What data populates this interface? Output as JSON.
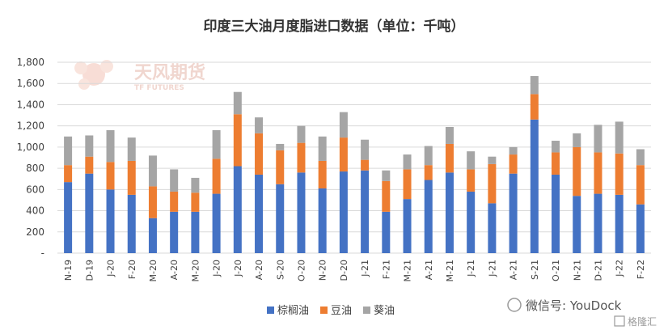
{
  "chart_data": {
    "type": "bar",
    "stacked": true,
    "title": "印度三大油月度脂进口数据（单位：千吨）",
    "ylim": [
      0,
      1800
    ],
    "yticks": [
      "-",
      "200",
      "400",
      "600",
      "800",
      "1,000",
      "1,200",
      "1,400",
      "1,600",
      "1,800"
    ],
    "grid": true,
    "legend_position": "bottom",
    "categories": [
      "N-19",
      "D-19",
      "J-20",
      "F-20",
      "M-20",
      "A-20",
      "M-20",
      "J-20",
      "J-20",
      "A-20",
      "S-20",
      "O-20",
      "N-20",
      "D-20",
      "J-21",
      "F-21",
      "M-21",
      "A-21",
      "M-21",
      "J-21",
      "J-21",
      "A-21",
      "S-21",
      "O-21",
      "N-21",
      "D-21",
      "J-22",
      "F-22"
    ],
    "series": [
      {
        "name": "棕榈油",
        "color": "#4472C4",
        "values": [
          670,
          750,
          600,
          550,
          330,
          390,
          390,
          560,
          820,
          740,
          650,
          760,
          610,
          770,
          780,
          390,
          510,
          690,
          760,
          580,
          470,
          750,
          1260,
          740,
          540,
          560,
          550,
          460
        ]
      },
      {
        "name": "豆油",
        "color": "#ED7D31",
        "values": [
          160,
          160,
          260,
          320,
          300,
          190,
          180,
          330,
          490,
          390,
          320,
          280,
          260,
          320,
          100,
          290,
          280,
          140,
          270,
          210,
          370,
          180,
          240,
          210,
          460,
          390,
          390,
          370
        ]
      },
      {
        "name": "葵油",
        "color": "#A5A5A5",
        "values": [
          270,
          200,
          300,
          220,
          290,
          210,
          140,
          270,
          210,
          150,
          60,
          160,
          230,
          240,
          190,
          100,
          140,
          180,
          160,
          170,
          70,
          70,
          170,
          110,
          130,
          260,
          300,
          150
        ]
      }
    ]
  },
  "watermark": {
    "brand": "天风期货",
    "brand_en": "TF FUTURES"
  },
  "wechat": {
    "text": "微信号: YouDock",
    "corner": "格隆汇"
  }
}
